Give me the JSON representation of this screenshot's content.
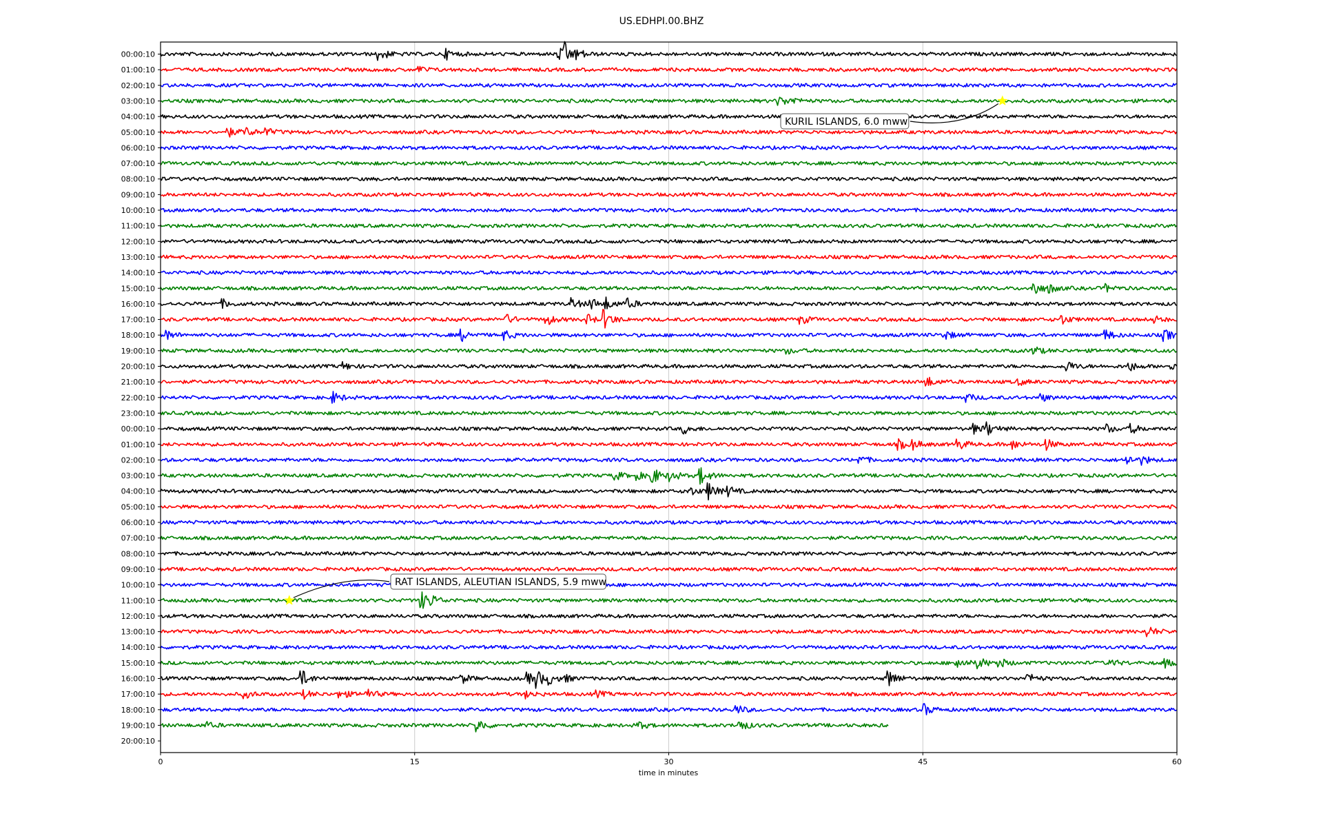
{
  "chart_data": {
    "type": "line",
    "title": "US.EDHPI.00.BHZ",
    "xlabel": "time in minutes",
    "ylabel": "",
    "xlim": [
      0,
      60
    ],
    "xticks": [
      0,
      15,
      30,
      45,
      60
    ],
    "xtick_labels": [
      "0",
      "15",
      "30",
      "45",
      "60"
    ],
    "grid": "vertical",
    "line_colors": [
      "#000000",
      "#ff0000",
      "#0000ff",
      "#008000"
    ],
    "row_labels": [
      "00:00:10",
      "01:00:10",
      "02:00:10",
      "03:00:10",
      "04:00:10",
      "05:00:10",
      "06:00:10",
      "07:00:10",
      "08:00:10",
      "09:00:10",
      "10:00:10",
      "11:00:10",
      "12:00:10",
      "13:00:10",
      "14:00:10",
      "15:00:10",
      "16:00:10",
      "17:00:10",
      "18:00:10",
      "19:00:10",
      "20:00:10",
      "21:00:10",
      "22:00:10",
      "23:00:10",
      "00:00:10",
      "01:00:10",
      "02:00:10",
      "03:00:10",
      "04:00:10",
      "05:00:10",
      "06:00:10",
      "07:00:10",
      "08:00:10",
      "09:00:10",
      "10:00:10",
      "11:00:10",
      "12:00:10",
      "13:00:10",
      "14:00:10",
      "15:00:10",
      "16:00:10",
      "17:00:10",
      "18:00:10",
      "19:00:10",
      "20:00:10"
    ],
    "last_trace_end_minute": 43,
    "events": [
      {
        "row": 0,
        "minute": 12.9,
        "amp": 0.8
      },
      {
        "row": 0,
        "minute": 16.9,
        "amp": 0.5
      },
      {
        "row": 0,
        "minute": 23.5,
        "amp": 0.7
      },
      {
        "row": 0,
        "minute": 23.9,
        "amp": 1.0
      },
      {
        "row": 0,
        "minute": 24.6,
        "amp": 0.4
      },
      {
        "row": 1,
        "minute": 15.3,
        "amp": 0.3
      },
      {
        "row": 3,
        "minute": 36.5,
        "amp": 0.6
      },
      {
        "row": 3,
        "minute": 37.3,
        "amp": 0.3
      },
      {
        "row": 5,
        "minute": 4.0,
        "amp": 0.5
      },
      {
        "row": 5,
        "minute": 5.0,
        "amp": 0.5
      },
      {
        "row": 5,
        "minute": 6.2,
        "amp": 0.4
      },
      {
        "row": 15,
        "minute": 51.5,
        "amp": 1.0
      },
      {
        "row": 15,
        "minute": 52.5,
        "amp": 0.4
      },
      {
        "row": 15,
        "minute": 55.8,
        "amp": 0.4
      },
      {
        "row": 16,
        "minute": 3.7,
        "amp": 0.4
      },
      {
        "row": 16,
        "minute": 24.3,
        "amp": 0.6
      },
      {
        "row": 16,
        "minute": 25.4,
        "amp": 0.6
      },
      {
        "row": 16,
        "minute": 26.3,
        "amp": 0.6
      },
      {
        "row": 16,
        "minute": 27.6,
        "amp": 0.5
      },
      {
        "row": 17,
        "minute": 20.4,
        "amp": 0.5
      },
      {
        "row": 17,
        "minute": 22.8,
        "amp": 0.6
      },
      {
        "row": 17,
        "minute": 25.2,
        "amp": 0.5
      },
      {
        "row": 17,
        "minute": 26.2,
        "amp": 1.0
      },
      {
        "row": 17,
        "minute": 37.8,
        "amp": 0.5
      },
      {
        "row": 17,
        "minute": 53.2,
        "amp": 0.5
      },
      {
        "row": 17,
        "minute": 58.6,
        "amp": 0.4
      },
      {
        "row": 18,
        "minute": 0.4,
        "amp": 0.5
      },
      {
        "row": 18,
        "minute": 17.8,
        "amp": 0.6
      },
      {
        "row": 18,
        "minute": 20.3,
        "amp": 0.5
      },
      {
        "row": 18,
        "minute": 46.3,
        "amp": 0.5
      },
      {
        "row": 18,
        "minute": 55.8,
        "amp": 0.6
      },
      {
        "row": 18,
        "minute": 59.3,
        "amp": 0.6
      },
      {
        "row": 19,
        "minute": 37.0,
        "amp": 0.3
      },
      {
        "row": 19,
        "minute": 51.5,
        "amp": 0.5
      },
      {
        "row": 20,
        "minute": 10.8,
        "amp": 0.4
      },
      {
        "row": 20,
        "minute": 53.5,
        "amp": 0.6
      },
      {
        "row": 20,
        "minute": 57.2,
        "amp": 0.5
      },
      {
        "row": 20,
        "minute": 59.7,
        "amp": 0.6
      },
      {
        "row": 21,
        "minute": 45.2,
        "amp": 0.6
      },
      {
        "row": 21,
        "minute": 50.7,
        "amp": 0.3
      },
      {
        "row": 22,
        "minute": 10.2,
        "amp": 0.6
      },
      {
        "row": 22,
        "minute": 47.6,
        "amp": 0.4
      },
      {
        "row": 22,
        "minute": 52.0,
        "amp": 0.4
      },
      {
        "row": 24,
        "minute": 30.9,
        "amp": 0.5
      },
      {
        "row": 24,
        "minute": 48.0,
        "amp": 0.5
      },
      {
        "row": 24,
        "minute": 48.8,
        "amp": 0.7
      },
      {
        "row": 24,
        "minute": 55.8,
        "amp": 0.5
      },
      {
        "row": 24,
        "minute": 57.3,
        "amp": 0.5
      },
      {
        "row": 25,
        "minute": 43.6,
        "amp": 0.5
      },
      {
        "row": 25,
        "minute": 44.4,
        "amp": 0.5
      },
      {
        "row": 25,
        "minute": 47.1,
        "amp": 0.6
      },
      {
        "row": 25,
        "minute": 50.3,
        "amp": 0.5
      },
      {
        "row": 25,
        "minute": 52.2,
        "amp": 0.7
      },
      {
        "row": 26,
        "minute": 41.3,
        "amp": 0.4
      },
      {
        "row": 26,
        "minute": 57.0,
        "amp": 0.6
      },
      {
        "row": 26,
        "minute": 58.0,
        "amp": 0.4
      },
      {
        "row": 27,
        "minute": 26.8,
        "amp": 0.5
      },
      {
        "row": 27,
        "minute": 28.0,
        "amp": 0.5
      },
      {
        "row": 27,
        "minute": 29.0,
        "amp": 1.0
      },
      {
        "row": 27,
        "minute": 30.1,
        "amp": 0.6
      },
      {
        "row": 27,
        "minute": 31.9,
        "amp": 0.9
      },
      {
        "row": 28,
        "minute": 31.2,
        "amp": 0.5
      },
      {
        "row": 28,
        "minute": 32.3,
        "amp": 1.0
      },
      {
        "row": 28,
        "minute": 33.5,
        "amp": 0.5
      },
      {
        "row": 35,
        "minute": 15.4,
        "amp": 1.0
      },
      {
        "row": 35,
        "minute": 16.0,
        "amp": 0.4
      },
      {
        "row": 37,
        "minute": 58.3,
        "amp": 0.6
      },
      {
        "row": 39,
        "minute": 47.0,
        "amp": 0.7
      },
      {
        "row": 39,
        "minute": 48.3,
        "amp": 0.6
      },
      {
        "row": 39,
        "minute": 49.5,
        "amp": 0.5
      },
      {
        "row": 39,
        "minute": 56.0,
        "amp": 0.4
      },
      {
        "row": 39,
        "minute": 59.2,
        "amp": 0.6
      },
      {
        "row": 40,
        "minute": 8.3,
        "amp": 1.0
      },
      {
        "row": 40,
        "minute": 17.8,
        "amp": 0.5
      },
      {
        "row": 40,
        "minute": 21.7,
        "amp": 0.6
      },
      {
        "row": 40,
        "minute": 22.1,
        "amp": 1.0
      },
      {
        "row": 40,
        "minute": 22.9,
        "amp": 0.5
      },
      {
        "row": 40,
        "minute": 23.8,
        "amp": 0.4
      },
      {
        "row": 40,
        "minute": 43.0,
        "amp": 1.0
      },
      {
        "row": 40,
        "minute": 51.2,
        "amp": 0.6
      },
      {
        "row": 41,
        "minute": 5.0,
        "amp": 0.4
      },
      {
        "row": 41,
        "minute": 8.5,
        "amp": 0.4
      },
      {
        "row": 41,
        "minute": 10.6,
        "amp": 0.5
      },
      {
        "row": 41,
        "minute": 12.2,
        "amp": 0.5
      },
      {
        "row": 41,
        "minute": 21.6,
        "amp": 0.4
      },
      {
        "row": 41,
        "minute": 25.8,
        "amp": 0.3
      },
      {
        "row": 42,
        "minute": 34.0,
        "amp": 0.5
      },
      {
        "row": 42,
        "minute": 45.1,
        "amp": 0.6
      },
      {
        "row": 43,
        "minute": 2.7,
        "amp": 0.3
      },
      {
        "row": 43,
        "minute": 18.7,
        "amp": 0.8
      },
      {
        "row": 43,
        "minute": 28.2,
        "amp": 0.4
      },
      {
        "row": 43,
        "minute": 34.2,
        "amp": 0.6
      }
    ],
    "annotations": [
      {
        "text": "KURIL ISLANDS, 6.0 mww",
        "row": 3,
        "minute": 49.7
      },
      {
        "text": "RAT ISLANDS, ALEUTIAN ISLANDS, 5.9 mww",
        "row": 35,
        "minute": 7.6
      }
    ],
    "marker_color": "#ffff00"
  }
}
